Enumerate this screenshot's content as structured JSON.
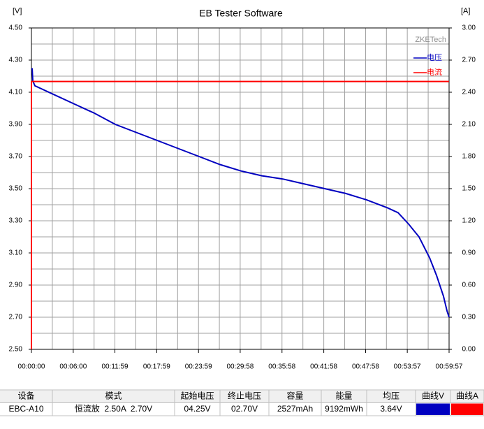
{
  "chart_data": {
    "type": "line",
    "title": "EB Tester Software",
    "y_label": "[V]",
    "y2_label": "[A]",
    "watermark": "ZKETech",
    "xlim": [
      0,
      3597
    ],
    "xticks": [
      {
        "value": 0,
        "label": "00:00:00"
      },
      {
        "value": 360,
        "label": "00:06:00"
      },
      {
        "value": 719,
        "label": "00:11:59"
      },
      {
        "value": 1079,
        "label": "00:17:59"
      },
      {
        "value": 1439,
        "label": "00:23:59"
      },
      {
        "value": 1798,
        "label": "00:29:58"
      },
      {
        "value": 2158,
        "label": "00:35:58"
      },
      {
        "value": 2518,
        "label": "00:41:58"
      },
      {
        "value": 2878,
        "label": "00:47:58"
      },
      {
        "value": 3237,
        "label": "00:53:57"
      },
      {
        "value": 3597,
        "label": "00:59:57"
      }
    ],
    "ylim": [
      2.5,
      4.5
    ],
    "yticks": [
      {
        "value": 2.5,
        "label": "2.50"
      },
      {
        "value": 2.7,
        "label": "2.70"
      },
      {
        "value": 2.9,
        "label": "2.90"
      },
      {
        "value": 3.1,
        "label": "3.10"
      },
      {
        "value": 3.3,
        "label": "3.30"
      },
      {
        "value": 3.5,
        "label": "3.50"
      },
      {
        "value": 3.7,
        "label": "3.70"
      },
      {
        "value": 3.9,
        "label": "3.90"
      },
      {
        "value": 4.1,
        "label": "4.10"
      },
      {
        "value": 4.3,
        "label": "4.30"
      },
      {
        "value": 4.5,
        "label": "4.50"
      }
    ],
    "y2lim": [
      0,
      3
    ],
    "y2ticks": [
      {
        "value": 0,
        "label": "0.00"
      },
      {
        "value": 0.3,
        "label": "0.30"
      },
      {
        "value": 0.6,
        "label": "0.60"
      },
      {
        "value": 0.9,
        "label": "0.90"
      },
      {
        "value": 1.2,
        "label": "1.20"
      },
      {
        "value": 1.5,
        "label": "1.50"
      },
      {
        "value": 1.8,
        "label": "1.80"
      },
      {
        "value": 2.1,
        "label": "2.10"
      },
      {
        "value": 2.4,
        "label": "2.40"
      },
      {
        "value": 2.7,
        "label": "2.70"
      },
      {
        "value": 3,
        "label": "3.00"
      }
    ],
    "grid": true,
    "legend": "top-right",
    "series": [
      {
        "name": "电压",
        "color": "#0000c0",
        "x": [
          6,
          12,
          30,
          90,
          180,
          360,
          541,
          722,
          902,
          1083,
          1263,
          1444,
          1624,
          1805,
          1985,
          2165,
          2346,
          2526,
          2707,
          2887,
          3068,
          3158,
          3248,
          3338,
          3429,
          3489,
          3549,
          3579,
          3597
        ],
        "values": [
          4.25,
          4.17,
          4.14,
          4.12,
          4.09,
          4.03,
          3.97,
          3.9,
          3.85,
          3.8,
          3.75,
          3.7,
          3.65,
          3.61,
          3.58,
          3.56,
          3.53,
          3.5,
          3.47,
          3.43,
          3.38,
          3.35,
          3.28,
          3.2,
          3.07,
          2.96,
          2.83,
          2.74,
          2.7
        ]
      },
      {
        "name": "电流",
        "color": "#ff0000",
        "axis": "y2",
        "x": [
          0,
          0,
          3597
        ],
        "values": [
          0,
          2.5,
          2.5
        ]
      }
    ]
  },
  "table": {
    "headers": [
      "设备",
      "模式",
      "起始电压",
      "终止电压",
      "容量",
      "能量",
      "均压",
      "曲线V",
      "曲线A"
    ],
    "rows": [
      [
        "EBC-A10",
        "恒流放  2.50A  2.70V",
        "04.25V",
        "02.70V",
        "2527mAh",
        "9192mWh",
        "3.64V"
      ]
    ]
  }
}
